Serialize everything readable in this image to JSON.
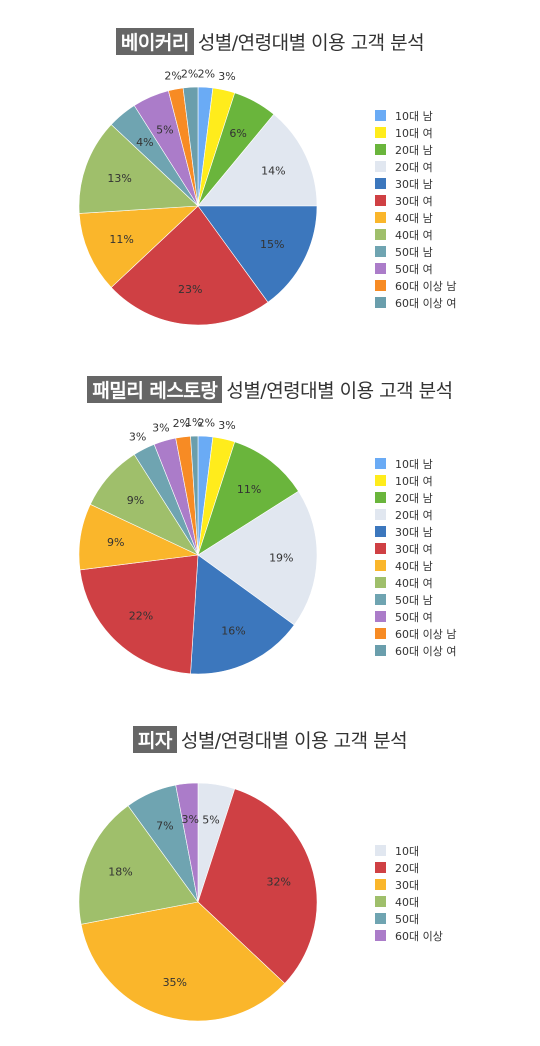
{
  "chart_data": [
    {
      "type": "pie",
      "title_tag": "베이커리",
      "title": "성별/연령대별 이용 고객 분석",
      "legend_position": "right",
      "slices": [
        {
          "label": "10대 남",
          "value": 2,
          "color": "#6aabf5"
        },
        {
          "label": "10대 여",
          "value": 3,
          "color": "#ffec1c"
        },
        {
          "label": "20대 남",
          "value": 6,
          "color": "#6ab53c"
        },
        {
          "label": "20대 여",
          "value": 14,
          "color": "#e1e7f0"
        },
        {
          "label": "30대 남",
          "value": 15,
          "color": "#3c77bd"
        },
        {
          "label": "30대 여",
          "value": 23,
          "color": "#cf4044"
        },
        {
          "label": "40대 남",
          "value": 11,
          "color": "#fab62b"
        },
        {
          "label": "40대 여",
          "value": 13,
          "color": "#9fbf6b"
        },
        {
          "label": "50대 남",
          "value": 4,
          "color": "#6fa4b1"
        },
        {
          "label": "50대 여",
          "value": 5,
          "color": "#ab7cc9"
        },
        {
          "label": "60대 이상 남",
          "value": 2,
          "color": "#f78b24"
        },
        {
          "label": "60대 이상 여",
          "value": 2,
          "color": "#6a9eac"
        }
      ]
    },
    {
      "type": "pie",
      "title_tag": "패밀리 레스토랑",
      "title": "성별/연령대별 이용 고객 분석",
      "legend_position": "right",
      "slices": [
        {
          "label": "10대 남",
          "value": 2,
          "color": "#6aabf5"
        },
        {
          "label": "10대 여",
          "value": 3,
          "color": "#ffec1c"
        },
        {
          "label": "20대 남",
          "value": 11,
          "color": "#6ab53c"
        },
        {
          "label": "20대 여",
          "value": 19,
          "color": "#e1e7f0"
        },
        {
          "label": "30대 남",
          "value": 16,
          "color": "#3c77bd"
        },
        {
          "label": "30대 여",
          "value": 22,
          "color": "#cf4044"
        },
        {
          "label": "40대 남",
          "value": 9,
          "color": "#fab62b"
        },
        {
          "label": "40대 여",
          "value": 9,
          "color": "#9fbf6b"
        },
        {
          "label": "50대 남",
          "value": 3,
          "color": "#6fa4b1"
        },
        {
          "label": "50대 여",
          "value": 3,
          "color": "#ab7cc9"
        },
        {
          "label": "60대 이상 남",
          "value": 2,
          "color": "#f78b24"
        },
        {
          "label": "60대 이상 여",
          "value": 1,
          "color": "#6a9eac"
        }
      ]
    },
    {
      "type": "pie",
      "title_tag": "피자",
      "title": "성별/연령대별 이용 고객 분석",
      "legend_position": "right",
      "slices": [
        {
          "label": "10대",
          "value": 5,
          "color": "#e1e7f0"
        },
        {
          "label": "20대",
          "value": 32,
          "color": "#cf4044"
        },
        {
          "label": "30대",
          "value": 35,
          "color": "#fab62b"
        },
        {
          "label": "40대",
          "value": 18,
          "color": "#9fbf6b"
        },
        {
          "label": "50대",
          "value": 7,
          "color": "#6fa4b1"
        },
        {
          "label": "60대 이상",
          "value": 3,
          "color": "#ab7cc9"
        }
      ]
    }
  ]
}
